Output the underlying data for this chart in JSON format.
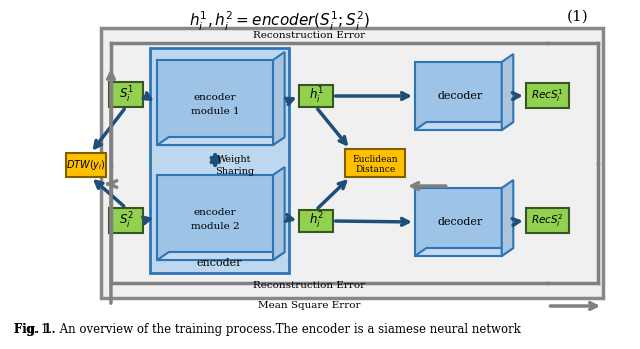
{
  "bg_color": "#ffffff",
  "outer_border_color": "#a0a0a0",
  "title_top": "$h_i^1, h_i^2 = encoder(S_i^1, S_i^2)$",
  "title_eq_num": "(1)",
  "recon_error_top": "Reconstruction Error",
  "recon_error_bottom": "Reconstruction Error",
  "mse_label": "Mean Square Error",
  "fig_caption": "Fig. 1.  An overview of the training process.The encoder is a siamese neural network",
  "encoder_bg": "#b8cce4",
  "encoder_border": "#4472c4",
  "green_box_color": "#92d050",
  "green_box_border": "#375623",
  "yellow_box_color": "#ffc000",
  "yellow_box_border": "#7f6000",
  "blue_3d_color": "#9dc3e6",
  "blue_3d_border": "#2e75b6",
  "arrow_blue": "#1f4e79",
  "arrow_gray": "#808080",
  "weight_sharing_color": "#4472c4"
}
